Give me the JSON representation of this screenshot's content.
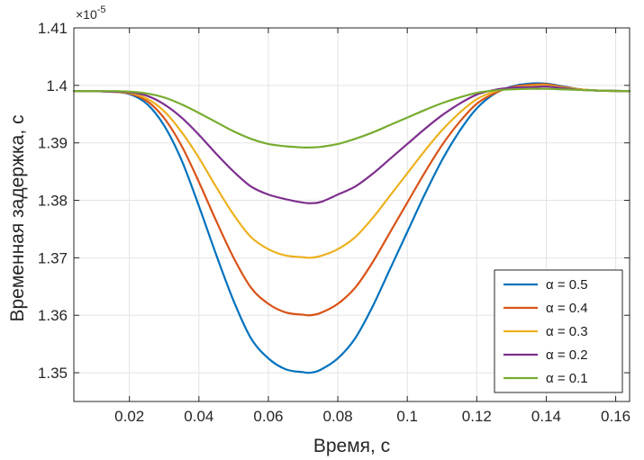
{
  "chart_data": {
    "type": "line",
    "title": "",
    "xlabel": "Время, с",
    "ylabel": "Временная задержка, с",
    "xlim": [
      0.004,
      0.164
    ],
    "ylim": [
      1.345,
      1.41
    ],
    "y_multiplier_base": "×10",
    "y_multiplier_exponent": "-5",
    "x_ticks": [
      0.02,
      0.04,
      0.06,
      0.08,
      0.1,
      0.12,
      0.14,
      0.16
    ],
    "x_tick_labels": [
      "0.02",
      "0.04",
      "0.06",
      "0.08",
      "0.1",
      "0.12",
      "0.14",
      "0.16"
    ],
    "y_ticks": [
      1.35,
      1.36,
      1.37,
      1.38,
      1.39,
      1.4,
      1.41
    ],
    "y_tick_labels": [
      "1.35",
      "1.36",
      "1.37",
      "1.38",
      "1.39",
      "1.4",
      "1.41"
    ],
    "grid": true,
    "legend_position": "bottom-right",
    "baseline": 1.399,
    "series": [
      {
        "name": "α = 0.5",
        "color": "#0072BD",
        "alpha": 0.5,
        "x": [
          0.004,
          0.01,
          0.015,
          0.02,
          0.025,
          0.03,
          0.035,
          0.04,
          0.045,
          0.05,
          0.055,
          0.06,
          0.065,
          0.07,
          0.072,
          0.075,
          0.08,
          0.085,
          0.09,
          0.095,
          0.1,
          0.105,
          0.11,
          0.115,
          0.12,
          0.125,
          0.13,
          0.135,
          0.14,
          0.145,
          0.15,
          0.155,
          0.164
        ],
        "y": [
          1.399,
          1.399,
          1.3989,
          1.3985,
          1.3968,
          1.393,
          1.387,
          1.379,
          1.3705,
          1.3625,
          1.356,
          1.3525,
          1.3506,
          1.3501,
          1.35,
          1.3505,
          1.3525,
          1.356,
          1.3615,
          1.368,
          1.3745,
          1.381,
          1.387,
          1.392,
          1.396,
          1.3985,
          1.3998,
          1.4003,
          1.4003,
          1.3998,
          1.3993,
          1.3991,
          1.399
        ]
      },
      {
        "name": "α = 0.4",
        "color": "#D95319",
        "alpha": 0.4,
        "x": [
          0.004,
          0.01,
          0.015,
          0.02,
          0.025,
          0.03,
          0.035,
          0.04,
          0.045,
          0.05,
          0.055,
          0.06,
          0.065,
          0.07,
          0.072,
          0.075,
          0.08,
          0.085,
          0.09,
          0.095,
          0.1,
          0.105,
          0.11,
          0.115,
          0.12,
          0.125,
          0.13,
          0.135,
          0.14,
          0.145,
          0.15,
          0.155,
          0.164
        ],
        "y": [
          1.399,
          1.399,
          1.3989,
          1.3986,
          1.3973,
          1.3943,
          1.3895,
          1.3832,
          1.3764,
          1.37,
          1.3648,
          1.362,
          1.3605,
          1.3601,
          1.36,
          1.3604,
          1.362,
          1.3648,
          1.3692,
          1.3744,
          1.3796,
          1.3848,
          1.3896,
          1.3936,
          1.3968,
          1.3986,
          1.3997,
          1.4001,
          1.4002,
          1.3997,
          1.3993,
          1.3991,
          1.399
        ]
      },
      {
        "name": "α = 0.3",
        "color": "#EDB120",
        "alpha": 0.3,
        "x": [
          0.004,
          0.01,
          0.015,
          0.02,
          0.025,
          0.03,
          0.035,
          0.04,
          0.045,
          0.05,
          0.055,
          0.06,
          0.065,
          0.07,
          0.072,
          0.075,
          0.08,
          0.085,
          0.09,
          0.095,
          0.1,
          0.105,
          0.11,
          0.115,
          0.12,
          0.125,
          0.13,
          0.135,
          0.14,
          0.145,
          0.15,
          0.155,
          0.164
        ],
        "y": [
          1.399,
          1.399,
          1.3989,
          1.3987,
          1.3977,
          1.3955,
          1.3919,
          1.3874,
          1.3823,
          1.3775,
          1.3736,
          1.3715,
          1.3704,
          1.3701,
          1.37,
          1.3703,
          1.3715,
          1.3736,
          1.3769,
          1.3808,
          1.3847,
          1.3886,
          1.3922,
          1.3952,
          1.3976,
          1.3989,
          1.3996,
          1.3999,
          1.4,
          1.3996,
          1.3993,
          1.3991,
          1.399
        ]
      },
      {
        "name": "α = 0.2",
        "color": "#7E2F8E",
        "alpha": 0.2,
        "x": [
          0.004,
          0.01,
          0.015,
          0.02,
          0.025,
          0.03,
          0.035,
          0.04,
          0.045,
          0.05,
          0.055,
          0.06,
          0.065,
          0.07,
          0.072,
          0.075,
          0.08,
          0.085,
          0.09,
          0.095,
          0.1,
          0.105,
          0.11,
          0.115,
          0.12,
          0.125,
          0.13,
          0.135,
          0.14,
          0.145,
          0.15,
          0.155,
          0.164
        ],
        "y": [
          1.399,
          1.399,
          1.3989,
          1.3988,
          1.3982,
          1.3967,
          1.3944,
          1.3914,
          1.3881,
          1.385,
          1.3824,
          1.381,
          1.3802,
          1.3796,
          1.3795,
          1.3797,
          1.381,
          1.3824,
          1.3846,
          1.3872,
          1.3898,
          1.3924,
          1.3948,
          1.3968,
          1.3984,
          1.3992,
          1.3996,
          1.3997,
          1.3998,
          1.3995,
          1.3992,
          1.3991,
          1.399
        ]
      },
      {
        "name": "α = 0.1",
        "color": "#77AC30",
        "alpha": 0.1,
        "x": [
          0.004,
          0.01,
          0.015,
          0.02,
          0.025,
          0.03,
          0.035,
          0.04,
          0.045,
          0.05,
          0.055,
          0.06,
          0.065,
          0.07,
          0.072,
          0.075,
          0.08,
          0.085,
          0.09,
          0.095,
          0.1,
          0.105,
          0.11,
          0.115,
          0.12,
          0.125,
          0.13,
          0.135,
          0.14,
          0.145,
          0.15,
          0.155,
          0.164
        ],
        "y": [
          1.399,
          1.399,
          1.399,
          1.3989,
          1.3986,
          1.3979,
          1.3967,
          1.3952,
          1.3936,
          1.392,
          1.3907,
          1.3898,
          1.3894,
          1.3892,
          1.3892,
          1.3893,
          1.3898,
          1.3907,
          1.3918,
          1.3931,
          1.3944,
          1.3957,
          1.3969,
          1.3979,
          1.3987,
          1.3991,
          1.3993,
          1.3994,
          1.3994,
          1.3993,
          1.3992,
          1.3991,
          1.399
        ]
      }
    ]
  }
}
